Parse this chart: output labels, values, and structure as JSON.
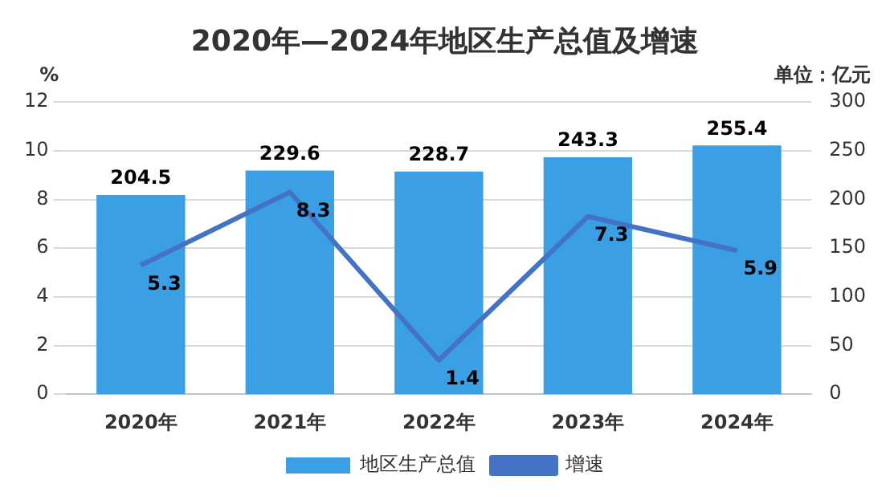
{
  "chart_data": {
    "type": "bar",
    "title": "2020年—2024年地区生产总值及增速",
    "ylabel": "%",
    "y2label": "单位：亿元",
    "categories": [
      "2020年",
      "2021年",
      "2022年",
      "2023年",
      "2024年"
    ],
    "series": [
      {
        "name": "地区生产总值",
        "axis": "y2",
        "color": "#3a9fe4",
        "values": [
          204.5,
          229.6,
          228.7,
          243.3,
          255.4
        ]
      },
      {
        "name": "增速",
        "type": "line",
        "axis": "y",
        "color": "#4472c4",
        "values": [
          5.3,
          8.3,
          1.4,
          7.3,
          5.9
        ]
      }
    ],
    "ylim": [
      0,
      12
    ],
    "yticks": [
      0,
      2,
      4,
      6,
      8,
      10,
      12
    ],
    "y2lim": [
      0,
      300
    ],
    "y2ticks": [
      0,
      50,
      100,
      150,
      200,
      250,
      300
    ],
    "grid": "y",
    "legend": "bottom",
    "marker": "none",
    "line_style": "solid",
    "data_labels": true
  }
}
